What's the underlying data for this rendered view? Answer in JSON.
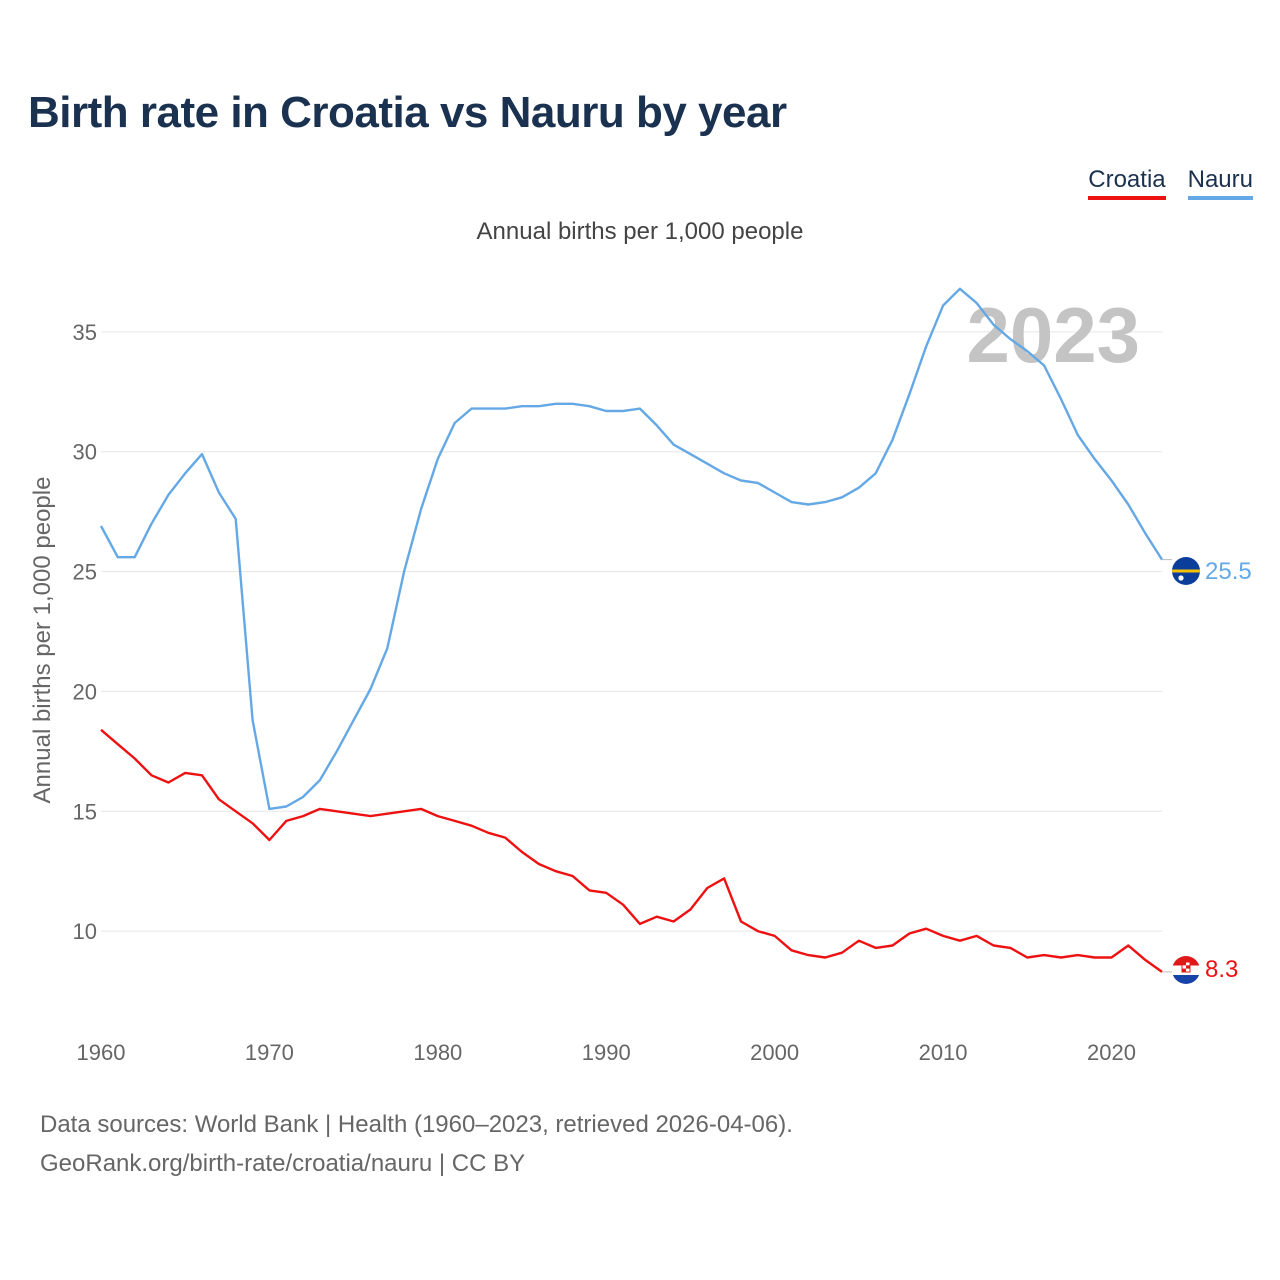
{
  "title": "Birth rate in Croatia vs Nauru by year",
  "subtitle": "Annual births per 1,000 people",
  "legend": {
    "croatia": "Croatia",
    "nauru": "Nauru"
  },
  "footer": {
    "line1": "Data sources: World Bank | Health (1960–2023, retrieved 2026-04-06).",
    "line2": "GeoRank.org/birth-rate/croatia/nauru | CC BY"
  },
  "colors": {
    "croatia": "#ee1111",
    "nauru": "#65a8e6",
    "grid": "#e6e6e6",
    "title": "#1b3150"
  },
  "chart_data": {
    "type": "line",
    "title": "Birth rate in Croatia vs Nauru by year",
    "ylabel": "Annual births per 1,000 people",
    "xlabel": "",
    "year_label": "2023",
    "xlim": [
      1960,
      2023
    ],
    "ylim": [
      6.5,
      38
    ],
    "xticks": [
      1960,
      1970,
      1980,
      1990,
      2000,
      2010,
      2020
    ],
    "yticks": [
      10,
      15,
      20,
      25,
      30,
      35
    ],
    "grid": true,
    "legend": "top-right",
    "x": [
      1960,
      1961,
      1962,
      1963,
      1964,
      1965,
      1966,
      1967,
      1968,
      1969,
      1970,
      1971,
      1972,
      1973,
      1974,
      1975,
      1976,
      1977,
      1978,
      1979,
      1980,
      1981,
      1982,
      1983,
      1984,
      1985,
      1986,
      1987,
      1988,
      1989,
      1990,
      1991,
      1992,
      1993,
      1994,
      1995,
      1996,
      1997,
      1998,
      1999,
      2000,
      2001,
      2002,
      2003,
      2004,
      2005,
      2006,
      2007,
      2008,
      2009,
      2010,
      2011,
      2012,
      2013,
      2014,
      2015,
      2016,
      2017,
      2018,
      2019,
      2020,
      2021,
      2022,
      2023
    ],
    "series": [
      {
        "name": "Nauru",
        "end_label": "25.5",
        "values": [
          26.9,
          25.6,
          25.6,
          27.0,
          28.2,
          29.1,
          29.9,
          28.3,
          27.2,
          18.8,
          15.1,
          15.2,
          15.6,
          16.3,
          17.5,
          18.8,
          20.1,
          21.8,
          25.0,
          27.6,
          29.7,
          31.2,
          31.8,
          31.8,
          31.8,
          31.9,
          31.9,
          32.0,
          32.0,
          31.9,
          31.7,
          31.7,
          31.8,
          31.1,
          30.3,
          29.9,
          29.5,
          29.1,
          28.8,
          28.7,
          28.3,
          27.9,
          27.8,
          27.9,
          28.1,
          28.5,
          29.1,
          30.5,
          32.4,
          34.4,
          36.1,
          36.8,
          36.2,
          35.3,
          34.7,
          34.2,
          33.6,
          32.2,
          30.7,
          29.7,
          28.8,
          27.8,
          26.6,
          25.5
        ]
      },
      {
        "name": "Croatia",
        "end_label": "8.3",
        "values": [
          18.4,
          17.8,
          17.2,
          16.5,
          16.2,
          16.6,
          16.5,
          15.5,
          15.0,
          14.5,
          13.8,
          14.6,
          14.8,
          15.1,
          15.0,
          14.9,
          14.8,
          14.9,
          15.0,
          15.1,
          14.8,
          14.6,
          14.4,
          14.1,
          13.9,
          13.3,
          12.8,
          12.5,
          12.3,
          11.7,
          11.6,
          11.1,
          10.3,
          10.6,
          10.4,
          10.9,
          11.8,
          12.2,
          10.4,
          10.0,
          9.8,
          9.2,
          9.0,
          8.9,
          9.1,
          9.6,
          9.3,
          9.4,
          9.9,
          10.1,
          9.8,
          9.6,
          9.8,
          9.4,
          9.3,
          8.9,
          9.0,
          8.9,
          9.0,
          8.9,
          8.9,
          9.4,
          8.8,
          8.3
        ]
      }
    ]
  }
}
